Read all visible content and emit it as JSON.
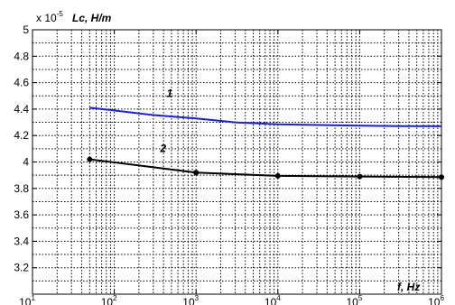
{
  "chart_data": {
    "type": "line",
    "x_scale": "log",
    "xlim": [
      10,
      1000000
    ],
    "ylim": [
      3.0,
      5.0
    ],
    "grid": true,
    "y_multiplier": "x 10",
    "y_multiplier_exp": "-5",
    "ylabel": "Lc, H/m",
    "xlabel": "f, Hz",
    "x_ticks": [
      {
        "base": "10",
        "exp": "1",
        "value": 10
      },
      {
        "base": "10",
        "exp": "2",
        "value": 100
      },
      {
        "base": "10",
        "exp": "3",
        "value": 1000
      },
      {
        "base": "10",
        "exp": "4",
        "value": 10000
      },
      {
        "base": "10",
        "exp": "5",
        "value": 100000
      },
      {
        "base": "10",
        "exp": "6",
        "value": 1000000
      }
    ],
    "y_ticks": [
      {
        "label": "3.2",
        "value": 3.2
      },
      {
        "label": "3.4",
        "value": 3.4
      },
      {
        "label": "3.6",
        "value": 3.6
      },
      {
        "label": "3.8",
        "value": 3.8
      },
      {
        "label": "4",
        "value": 4.0
      },
      {
        "label": "4.2",
        "value": 4.2
      },
      {
        "label": "4.4",
        "value": 4.4
      },
      {
        "label": "4.6",
        "value": 4.6
      },
      {
        "label": "4.8",
        "value": 4.8
      },
      {
        "label": "5",
        "value": 5.0
      }
    ],
    "series": [
      {
        "name": "1",
        "color": "#1f1fcf",
        "markers": false,
        "x": [
          50,
          100,
          300,
          1000,
          3000,
          10000,
          30000,
          100000,
          300000,
          1000000
        ],
        "y": [
          4.41,
          4.39,
          4.355,
          4.33,
          4.3,
          4.285,
          4.28,
          4.275,
          4.272,
          4.27
        ]
      },
      {
        "name": "2",
        "color": "#000000",
        "markers": true,
        "x": [
          50,
          1000,
          10000,
          100000,
          1000000
        ],
        "y": [
          4.02,
          3.92,
          3.895,
          3.89,
          3.885
        ]
      }
    ]
  }
}
